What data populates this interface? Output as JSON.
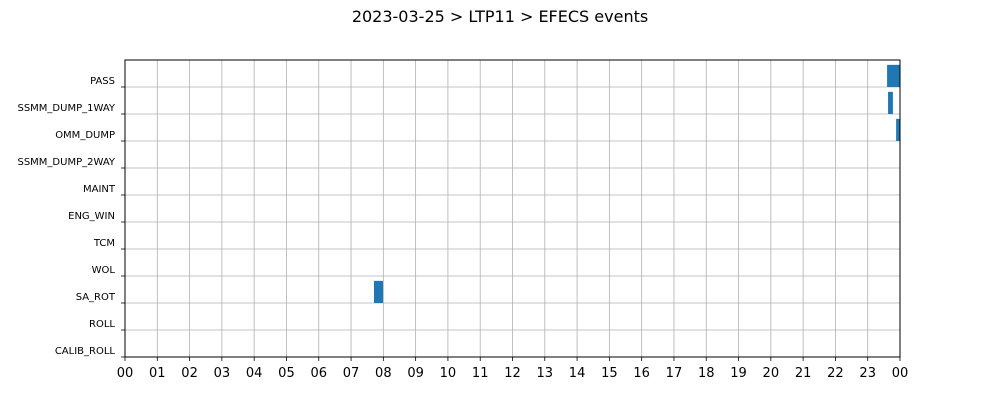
{
  "chart_data": {
    "type": "timeline",
    "title": "2023-03-25 > LTP11 > EFECS events",
    "categories": [
      "PASS",
      "SSMM_DUMP_1WAY",
      "OMM_DUMP",
      "SSMM_DUMP_2WAY",
      "MAINT",
      "ENG_WIN",
      "TCM",
      "WOL",
      "SA_ROT",
      "ROLL",
      "CALIB_ROLL"
    ],
    "intervals": [
      [
        [
          23.6,
          24
        ]
      ],
      [
        [
          23.63,
          23.78
        ]
      ],
      [
        [
          23.88,
          24
        ]
      ],
      [],
      [],
      [],
      [],
      [],
      [
        [
          7.71,
          7.99
        ]
      ],
      [],
      []
    ],
    "color": "#1f77b4",
    "grid": true,
    "xlim": [
      0,
      24
    ],
    "xticks": [
      {
        "value": 0,
        "label": "00"
      },
      {
        "value": 1,
        "label": "01"
      },
      {
        "value": 2,
        "label": "02"
      },
      {
        "value": 3,
        "label": "03"
      },
      {
        "value": 4,
        "label": "04"
      },
      {
        "value": 5,
        "label": "05"
      },
      {
        "value": 6,
        "label": "06"
      },
      {
        "value": 7,
        "label": "07"
      },
      {
        "value": 8,
        "label": "08"
      },
      {
        "value": 9,
        "label": "09"
      },
      {
        "value": 10,
        "label": "10"
      },
      {
        "value": 11,
        "label": "11"
      },
      {
        "value": 12,
        "label": "12"
      },
      {
        "value": 13,
        "label": "13"
      },
      {
        "value": 14,
        "label": "14"
      },
      {
        "value": 15,
        "label": "15"
      },
      {
        "value": 16,
        "label": "16"
      },
      {
        "value": 17,
        "label": "17"
      },
      {
        "value": 18,
        "label": "18"
      },
      {
        "value": 19,
        "label": "19"
      },
      {
        "value": 20,
        "label": "20"
      },
      {
        "value": 21,
        "label": "21"
      },
      {
        "value": 22,
        "label": "22"
      },
      {
        "value": 23,
        "label": "23"
      },
      {
        "value": 24,
        "label": "00"
      }
    ]
  }
}
